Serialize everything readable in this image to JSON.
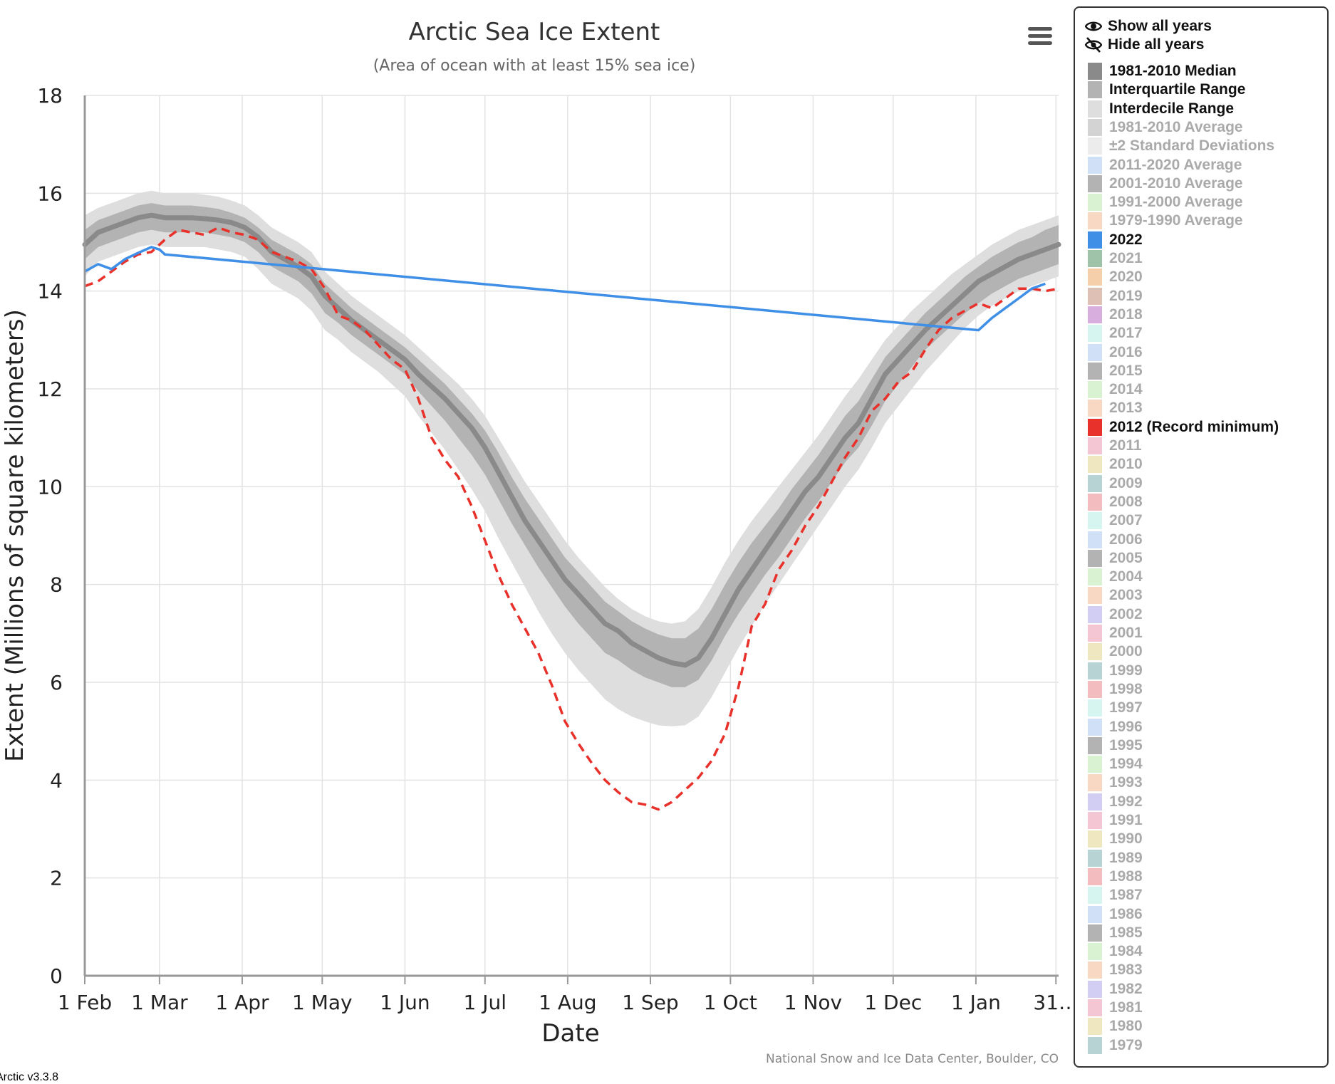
{
  "footer": {
    "version": "Arctic v3.3.8"
  },
  "legend_controls": {
    "show_all": "Show all years",
    "hide_all": "Hide all years"
  },
  "legend": [
    {
      "label": "1981-2010 Median",
      "color": "#8a8a8a",
      "active": true
    },
    {
      "label": "Interquartile Range",
      "color": "#b3b3b3",
      "active": true
    },
    {
      "label": "Interdecile Range",
      "color": "#dedede",
      "active": true
    },
    {
      "label": "1981-2010 Average",
      "color": "#d3d3d3",
      "active": false
    },
    {
      "label": "±2 Standard Deviations",
      "color": "#ececec",
      "active": false
    },
    {
      "label": "2011-2020 Average",
      "color": "#cfe0f7",
      "active": false
    },
    {
      "label": "2001-2010 Average",
      "color": "#b3b3b3",
      "active": false
    },
    {
      "label": "1991-2000 Average",
      "color": "#d8f2d2",
      "active": false
    },
    {
      "label": "1979-1990 Average",
      "color": "#f8d8c3",
      "active": false
    },
    {
      "label": "2022",
      "color": "#3f8fe6",
      "active": true
    },
    {
      "label": "2021",
      "color": "#9fc3a8",
      "active": false
    },
    {
      "label": "2020",
      "color": "#f5cfa9",
      "active": false
    },
    {
      "label": "2019",
      "color": "#dfc0b4",
      "active": false
    },
    {
      "label": "2018",
      "color": "#d8aedf",
      "active": false
    },
    {
      "label": "2017",
      "color": "#d7f5f0",
      "active": false
    },
    {
      "label": "2016",
      "color": "#cfe0f7",
      "active": false
    },
    {
      "label": "2015",
      "color": "#b3b3b3",
      "active": false
    },
    {
      "label": "2014",
      "color": "#d8f2d2",
      "active": false
    },
    {
      "label": "2013",
      "color": "#f8d8c3",
      "active": false
    },
    {
      "label": "2012 (Record minimum)",
      "color": "#e8312a",
      "active": true
    },
    {
      "label": "2011",
      "color": "#f4c5d3",
      "active": false
    },
    {
      "label": "2010",
      "color": "#efe7bf",
      "active": false
    },
    {
      "label": "2009",
      "color": "#b7d3d3",
      "active": false
    },
    {
      "label": "2008",
      "color": "#f3bcbf",
      "active": false
    },
    {
      "label": "2007",
      "color": "#d7f5f0",
      "active": false
    },
    {
      "label": "2006",
      "color": "#cfe0f7",
      "active": false
    },
    {
      "label": "2005",
      "color": "#b3b3b3",
      "active": false
    },
    {
      "label": "2004",
      "color": "#d8f2d2",
      "active": false
    },
    {
      "label": "2003",
      "color": "#f8d8c3",
      "active": false
    },
    {
      "label": "2002",
      "color": "#d2cdf2",
      "active": false
    },
    {
      "label": "2001",
      "color": "#f4c5d3",
      "active": false
    },
    {
      "label": "2000",
      "color": "#efe7bf",
      "active": false
    },
    {
      "label": "1999",
      "color": "#b7d3d3",
      "active": false
    },
    {
      "label": "1998",
      "color": "#f3bcbf",
      "active": false
    },
    {
      "label": "1997",
      "color": "#d7f5f0",
      "active": false
    },
    {
      "label": "1996",
      "color": "#cfe0f7",
      "active": false
    },
    {
      "label": "1995",
      "color": "#b3b3b3",
      "active": false
    },
    {
      "label": "1994",
      "color": "#d8f2d2",
      "active": false
    },
    {
      "label": "1993",
      "color": "#f8d8c3",
      "active": false
    },
    {
      "label": "1992",
      "color": "#d2cdf2",
      "active": false
    },
    {
      "label": "1991",
      "color": "#f4c5d3",
      "active": false
    },
    {
      "label": "1990",
      "color": "#efe7bf",
      "active": false
    },
    {
      "label": "1989",
      "color": "#b7d3d3",
      "active": false
    },
    {
      "label": "1988",
      "color": "#f3bcbf",
      "active": false
    },
    {
      "label": "1987",
      "color": "#d7f5f0",
      "active": false
    },
    {
      "label": "1986",
      "color": "#cfe0f7",
      "active": false
    },
    {
      "label": "1985",
      "color": "#b3b3b3",
      "active": false
    },
    {
      "label": "1984",
      "color": "#d8f2d2",
      "active": false
    },
    {
      "label": "1983",
      "color": "#f8d8c3",
      "active": false
    },
    {
      "label": "1982",
      "color": "#d2cdf2",
      "active": false
    },
    {
      "label": "1981",
      "color": "#f4c5d3",
      "active": false
    },
    {
      "label": "1980",
      "color": "#efe7bf",
      "active": false
    },
    {
      "label": "1979",
      "color": "#b7d3d3",
      "active": false
    }
  ],
  "chart_data": {
    "type": "line",
    "title": "Arctic Sea Ice Extent",
    "subtitle": "(Area of ocean with at least 15% sea ice)",
    "xlabel": "Date",
    "ylabel": "Extent (Millions of square kilometers)",
    "credit": "National Snow and Ice Data Center, Boulder, CO",
    "x_unit": "days from 1 Feb",
    "xlim": [
      0,
      365
    ],
    "ylim": [
      0,
      18
    ],
    "yticks": [
      0,
      2,
      4,
      6,
      8,
      10,
      12,
      14,
      16,
      18
    ],
    "xticks": [
      {
        "x": 0,
        "label": "1 Feb"
      },
      {
        "x": 28,
        "label": "1 Mar"
      },
      {
        "x": 59,
        "label": "1 Apr"
      },
      {
        "x": 89,
        "label": "1 May"
      },
      {
        "x": 120,
        "label": "1 Jun"
      },
      {
        "x": 150,
        "label": "1 Jul"
      },
      {
        "x": 181,
        "label": "1 Aug"
      },
      {
        "x": 212,
        "label": "1 Sep"
      },
      {
        "x": 242,
        "label": "1 Oct"
      },
      {
        "x": 273,
        "label": "1 Nov"
      },
      {
        "x": 303,
        "label": "1 Dec"
      },
      {
        "x": 334,
        "label": "1 Jan"
      },
      {
        "x": 364,
        "label": "31…"
      }
    ],
    "grid": true,
    "legend_position": "right",
    "x": [
      0,
      5,
      10,
      15,
      20,
      25,
      30,
      35,
      40,
      45,
      50,
      55,
      60,
      65,
      70,
      75,
      80,
      85,
      90,
      95,
      100,
      105,
      110,
      115,
      120,
      125,
      130,
      135,
      140,
      145,
      150,
      155,
      160,
      165,
      170,
      175,
      180,
      185,
      190,
      195,
      200,
      205,
      210,
      215,
      220,
      225,
      230,
      235,
      240,
      245,
      250,
      255,
      260,
      265,
      270,
      275,
      280,
      285,
      290,
      295,
      300,
      305,
      310,
      315,
      320,
      325,
      330,
      335,
      340,
      345,
      350,
      355,
      360,
      365
    ],
    "median": [
      14.95,
      15.2,
      15.3,
      15.4,
      15.5,
      15.55,
      15.5,
      15.5,
      15.5,
      15.48,
      15.45,
      15.4,
      15.3,
      15.1,
      14.8,
      14.65,
      14.5,
      14.3,
      13.9,
      13.65,
      13.4,
      13.2,
      13.0,
      12.8,
      12.6,
      12.3,
      12.05,
      11.8,
      11.5,
      11.2,
      10.8,
      10.3,
      9.8,
      9.3,
      8.9,
      8.5,
      8.1,
      7.8,
      7.5,
      7.2,
      7.05,
      6.8,
      6.65,
      6.5,
      6.4,
      6.35,
      6.5,
      6.9,
      7.4,
      7.9,
      8.3,
      8.7,
      9.1,
      9.5,
      9.9,
      10.2,
      10.6,
      11.0,
      11.3,
      11.8,
      12.3,
      12.6,
      12.9,
      13.2,
      13.45,
      13.7,
      13.95,
      14.2,
      14.35,
      14.5,
      14.65,
      14.75,
      14.85,
      14.95
    ],
    "iqr_upper": [
      15.25,
      15.45,
      15.55,
      15.65,
      15.75,
      15.8,
      15.75,
      15.75,
      15.75,
      15.72,
      15.68,
      15.6,
      15.5,
      15.3,
      15.05,
      14.9,
      14.75,
      14.55,
      14.15,
      13.9,
      13.65,
      13.45,
      13.25,
      13.05,
      12.85,
      12.6,
      12.35,
      12.1,
      11.8,
      11.5,
      11.15,
      10.7,
      10.2,
      9.75,
      9.35,
      8.95,
      8.55,
      8.25,
      7.95,
      7.65,
      7.45,
      7.25,
      7.1,
      6.98,
      6.9,
      6.9,
      7.1,
      7.5,
      8.0,
      8.45,
      8.85,
      9.2,
      9.55,
      9.95,
      10.3,
      10.65,
      11.05,
      11.45,
      11.75,
      12.2,
      12.65,
      12.95,
      13.25,
      13.55,
      13.8,
      14.05,
      14.3,
      14.5,
      14.7,
      14.85,
      15.0,
      15.1,
      15.25,
      15.35
    ],
    "iqr_lower": [
      14.65,
      14.9,
      15.0,
      15.1,
      15.2,
      15.25,
      15.2,
      15.2,
      15.2,
      15.2,
      15.15,
      15.1,
      15.0,
      14.8,
      14.5,
      14.35,
      14.2,
      13.95,
      13.55,
      13.35,
      13.1,
      12.9,
      12.7,
      12.5,
      12.3,
      11.95,
      11.65,
      11.35,
      11.0,
      10.65,
      10.25,
      9.75,
      9.25,
      8.8,
      8.35,
      7.95,
      7.55,
      7.2,
      6.9,
      6.6,
      6.45,
      6.25,
      6.1,
      6.0,
      5.9,
      5.9,
      6.05,
      6.45,
      6.95,
      7.4,
      7.8,
      8.2,
      8.55,
      8.95,
      9.35,
      9.7,
      10.1,
      10.5,
      10.8,
      11.25,
      11.75,
      12.1,
      12.45,
      12.8,
      13.05,
      13.3,
      13.55,
      13.75,
      13.95,
      14.1,
      14.25,
      14.35,
      14.45,
      14.55
    ],
    "idr_upper": [
      15.55,
      15.7,
      15.8,
      15.9,
      16.0,
      16.05,
      16.0,
      16.0,
      16.0,
      15.97,
      15.93,
      15.85,
      15.75,
      15.55,
      15.3,
      15.15,
      15.0,
      14.8,
      14.4,
      14.15,
      13.9,
      13.7,
      13.5,
      13.3,
      13.1,
      12.85,
      12.6,
      12.35,
      12.1,
      11.8,
      11.45,
      11.0,
      10.55,
      10.1,
      9.7,
      9.3,
      8.9,
      8.55,
      8.25,
      7.95,
      7.7,
      7.5,
      7.35,
      7.25,
      7.2,
      7.25,
      7.5,
      7.95,
      8.45,
      8.9,
      9.3,
      9.65,
      10.0,
      10.35,
      10.7,
      11.05,
      11.45,
      11.85,
      12.2,
      12.6,
      13.0,
      13.3,
      13.6,
      13.85,
      14.1,
      14.35,
      14.55,
      14.75,
      14.95,
      15.1,
      15.25,
      15.35,
      15.45,
      15.55
    ],
    "idr_lower": [
      14.3,
      14.6,
      14.7,
      14.8,
      14.9,
      14.95,
      14.9,
      14.9,
      14.9,
      14.9,
      14.85,
      14.8,
      14.7,
      14.45,
      14.15,
      14.0,
      13.85,
      13.6,
      13.2,
      13.0,
      12.75,
      12.55,
      12.35,
      12.1,
      11.85,
      11.45,
      11.1,
      10.75,
      10.35,
      9.95,
      9.5,
      8.95,
      8.45,
      7.95,
      7.45,
      7.0,
      6.6,
      6.25,
      5.95,
      5.65,
      5.45,
      5.3,
      5.2,
      5.12,
      5.1,
      5.12,
      5.3,
      5.7,
      6.2,
      6.7,
      7.15,
      7.6,
      8.0,
      8.4,
      8.8,
      9.2,
      9.6,
      10.0,
      10.35,
      10.8,
      11.3,
      11.65,
      12.0,
      12.35,
      12.65,
      12.95,
      13.25,
      13.5,
      13.7,
      13.85,
      14.0,
      14.1,
      14.2,
      14.3
    ],
    "series": [
      {
        "name": "2022",
        "x": [
          0,
          5,
          10,
          15,
          20,
          25,
          28,
          30,
          335,
          340,
          345,
          350,
          355,
          360,
          364
        ],
        "values": [
          14.4,
          14.55,
          14.45,
          14.65,
          14.78,
          14.9,
          14.85,
          14.75,
          13.2,
          13.45,
          13.65,
          13.85,
          14.05,
          14.15,
          14.35
        ]
      },
      {
        "name": "2012 (Record minimum)",
        "x": [
          0,
          5,
          10,
          15,
          20,
          25,
          30,
          35,
          40,
          45,
          50,
          55,
          60,
          65,
          70,
          75,
          80,
          85,
          90,
          95,
          100,
          105,
          110,
          115,
          120,
          125,
          130,
          135,
          140,
          145,
          150,
          155,
          160,
          165,
          170,
          175,
          180,
          185,
          190,
          195,
          200,
          205,
          210,
          215,
          220,
          225,
          230,
          235,
          240,
          245,
          250,
          255,
          260,
          265,
          270,
          275,
          280,
          285,
          290,
          295,
          300,
          305,
          310,
          315,
          320,
          325,
          330,
          335,
          340,
          345,
          350,
          355,
          360,
          365
        ],
        "values": [
          14.1,
          14.2,
          14.4,
          14.6,
          14.75,
          14.8,
          15.05,
          15.25,
          15.2,
          15.15,
          15.3,
          15.2,
          15.15,
          15.05,
          14.8,
          14.7,
          14.6,
          14.45,
          14.05,
          13.5,
          13.4,
          13.2,
          12.9,
          12.6,
          12.4,
          11.8,
          11.0,
          10.55,
          10.2,
          9.6,
          8.9,
          8.2,
          7.6,
          7.1,
          6.6,
          5.95,
          5.2,
          4.75,
          4.35,
          4.0,
          3.75,
          3.55,
          3.5,
          3.4,
          3.55,
          3.8,
          4.05,
          4.4,
          4.95,
          5.9,
          7.15,
          7.6,
          8.3,
          8.7,
          9.2,
          9.6,
          10.1,
          10.6,
          11.0,
          11.55,
          11.8,
          12.15,
          12.35,
          12.8,
          13.2,
          13.45,
          13.6,
          13.75,
          13.65,
          13.85,
          14.05,
          14.05,
          14.0,
          14.05
        ]
      }
    ]
  }
}
